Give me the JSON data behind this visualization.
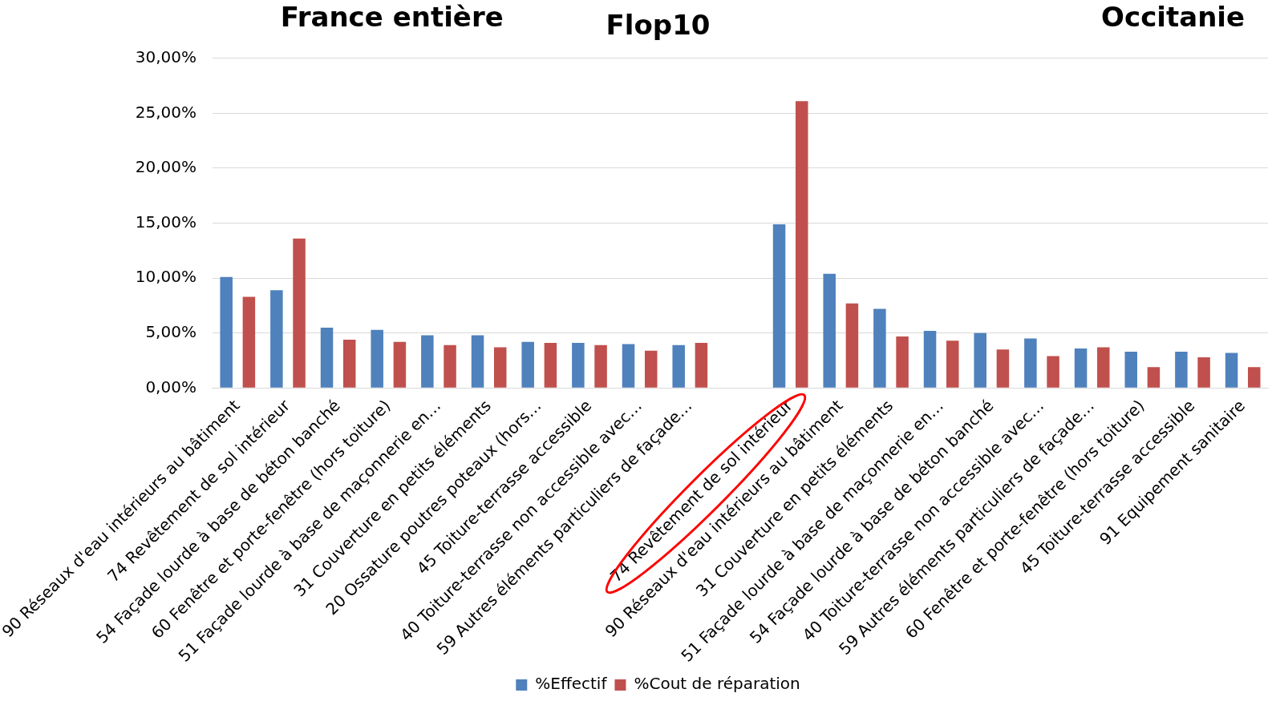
{
  "chart_data": {
    "type": "bar",
    "title": "Flop10",
    "annotations": [
      "France entière",
      "Occitanie"
    ],
    "categories": [
      "90 Réseaux d'eau intérieurs au bâtiment",
      "74 Revêtement de sol intérieur",
      "54 Façade lourde à base de béton banché",
      "60 Fenêtre et porte-fenêtre (hors toiture)",
      "51 Façade lourde à base de maçonnerie en…",
      "31 Couverture en petits éléments",
      "20 Ossature poutres poteaux (hors…",
      "45 Toiture-terrasse accessible",
      "40 Toiture-terrasse non accessible avec…",
      "59 Autres éléments particuliers de façade…",
      null,
      "74 Revêtement de sol intérieur",
      "90 Réseaux d'eau intérieurs au bâtiment",
      "31 Couverture en petits éléments",
      "51 Façade lourde à base de maçonnerie en…",
      "54 Façade lourde à base de béton banché",
      "40 Toiture-terrasse non accessible avec…",
      "59 Autres éléments particuliers de façade…",
      "60 Fenêtre et porte-fenêtre (hors toiture)",
      "45 Toiture-terrasse accessible",
      "91 Equipement sanitaire"
    ],
    "series": [
      {
        "name": "%Effectif",
        "color": "#4f81bd",
        "values": [
          10.1,
          8.9,
          5.5,
          5.3,
          4.8,
          4.8,
          4.2,
          4.1,
          4.0,
          3.9,
          null,
          14.9,
          10.4,
          7.2,
          5.2,
          5.0,
          4.5,
          3.6,
          3.3,
          3.3,
          3.2
        ]
      },
      {
        "name": "%Cout de réparation",
        "color": "#c0504d",
        "values": [
          8.3,
          13.6,
          4.4,
          4.2,
          3.9,
          3.7,
          4.1,
          3.9,
          3.4,
          4.1,
          null,
          26.1,
          7.7,
          4.7,
          4.3,
          3.5,
          2.9,
          3.7,
          1.9,
          2.8,
          1.9
        ]
      }
    ],
    "ylim": [
      0,
      30
    ],
    "yticks": [
      {
        "value": 0,
        "label": "0,00%"
      },
      {
        "value": 5,
        "label": "5,00%"
      },
      {
        "value": 10,
        "label": "10,00%"
      },
      {
        "value": 15,
        "label": "15,00%"
      },
      {
        "value": 20,
        "label": "20,00%"
      },
      {
        "value": 25,
        "label": "25,00%"
      },
      {
        "value": 30,
        "label": "30,00%"
      }
    ],
    "grid": "y",
    "legend": "bottom"
  }
}
